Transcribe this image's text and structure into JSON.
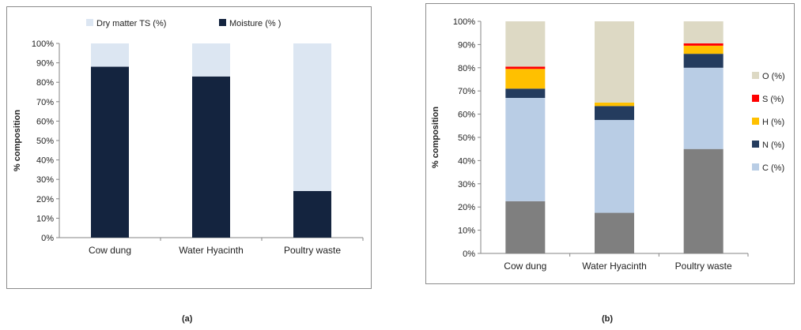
{
  "captions": {
    "a": "(a)",
    "b": "(b)"
  },
  "chart_data": [
    {
      "type": "bar",
      "stacked": true,
      "title": "",
      "xlabel": "",
      "ylabel": "% composition",
      "ylim": [
        0,
        100
      ],
      "yticks": [
        "0%",
        "10%",
        "20%",
        "30%",
        "40%",
        "50%",
        "60%",
        "70%",
        "80%",
        "90%",
        "100%"
      ],
      "grid": false,
      "legend_position": "top",
      "categories": [
        "Cow dung",
        "Water Hyacinth",
        "Poultry waste"
      ],
      "series": [
        {
          "name": "Moisture (% )",
          "color": "#14243f",
          "values": [
            88,
            83,
            24
          ]
        },
        {
          "name": "Dry matter TS (%)",
          "color": "#dce6f2",
          "values": [
            12,
            17,
            76
          ]
        }
      ],
      "legend_order": [
        1,
        0
      ]
    },
    {
      "type": "bar",
      "stacked": true,
      "title": "",
      "xlabel": "",
      "ylabel": "% composition",
      "ylim": [
        0,
        100
      ],
      "yticks": [
        "0%",
        "10%",
        "20%",
        "30%",
        "40%",
        "50%",
        "60%",
        "70%",
        "80%",
        "90%",
        "100%"
      ],
      "grid": false,
      "legend_position": "right",
      "categories": [
        "Cow dung",
        "Water Hyacinth",
        "Poultry waste"
      ],
      "series": [
        {
          "name": "",
          "color": "#7f7f7f",
          "values": [
            22.5,
            17.5,
            45
          ]
        },
        {
          "name": "C (%)",
          "color": "#b9cde5",
          "values": [
            44.5,
            40,
            35
          ]
        },
        {
          "name": "N (%)",
          "color": "#243c5e",
          "values": [
            4,
            6,
            6
          ]
        },
        {
          "name": "H (%)",
          "color": "#ffc000",
          "values": [
            8.5,
            1.5,
            3.5
          ]
        },
        {
          "name": "S (%)",
          "color": "#ff0000",
          "values": [
            1,
            0,
            1
          ]
        },
        {
          "name": "O (%)",
          "color": "#ddd9c4",
          "values": [
            19.5,
            35,
            9.5
          ]
        }
      ],
      "legend_order": [
        5,
        4,
        3,
        2,
        1
      ]
    }
  ]
}
